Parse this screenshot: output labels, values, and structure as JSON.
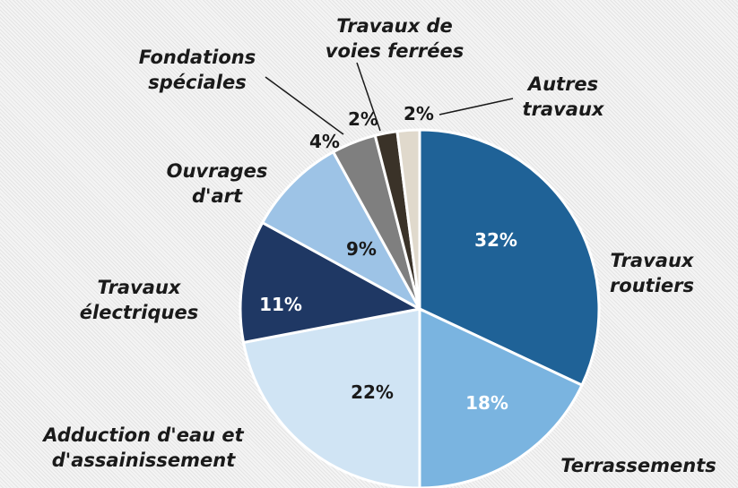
{
  "chart_data": {
    "type": "pie",
    "categories": [
      "Travaux routiers",
      "Terrassements",
      "Adduction d'eau et d'assainissement",
      "Travaux électriques",
      "Ouvrages d'art",
      "Fondations spéciales",
      "Travaux de voies ferrées",
      "Autres travaux"
    ],
    "values": [
      32,
      18,
      22,
      11,
      9,
      4,
      2,
      2
    ],
    "value_labels": [
      "32%",
      "18%",
      "22%",
      "11%",
      "9%",
      "4%",
      "2%",
      "2%"
    ],
    "colors": [
      "#1f6297",
      "#7ab4e0",
      "#d0e4f4",
      "#1f3864",
      "#9dc3e6",
      "#7f7f7f",
      "#3a3228",
      "#e0d9cc"
    ]
  }
}
